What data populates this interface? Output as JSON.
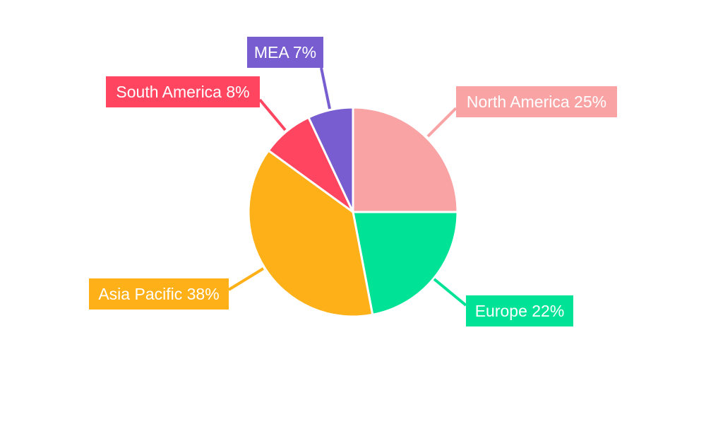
{
  "chart_data": {
    "type": "pie",
    "title": "",
    "categories": [
      "North America",
      "Europe",
      "Asia Pacific",
      "South America",
      "MEA"
    ],
    "values": [
      25,
      22,
      38,
      8,
      7
    ],
    "labels": [
      "North America 25%",
      "Europe 22%",
      "Asia Pacific 38%",
      "South America 8%",
      "MEA 7%"
    ],
    "colors": [
      "#F9A3A4",
      "#00E396",
      "#FEB019",
      "#FF4560",
      "#775DD0"
    ],
    "start_angle": "top, clockwise",
    "legend": "none, outside labels with leader lines"
  }
}
